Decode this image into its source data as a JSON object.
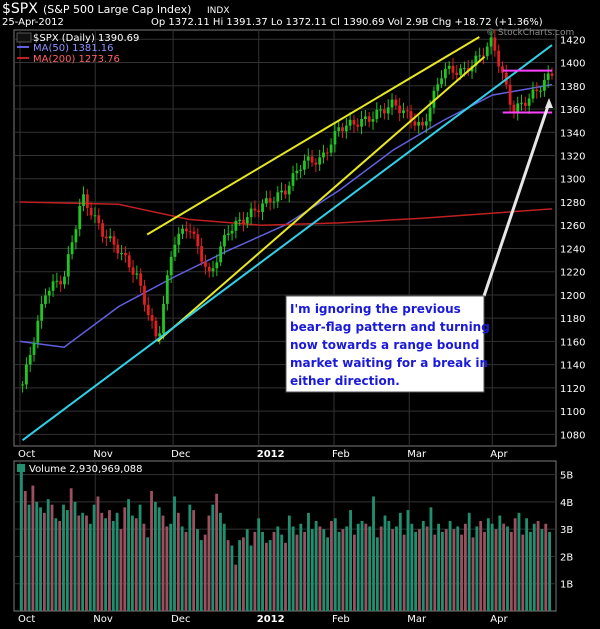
{
  "header": {
    "symbol": "$SPX",
    "name": "(S&P 500 Large Cap Index)",
    "exchange": "INDX",
    "date": "25-Apr-2012",
    "quote": "Op 1372.11  Hi 1391.37  Lo 1372.11  Cl 1390.69  Vol 2.9B  Chg +18.72 (+1.36%)",
    "watermark": "© StockCharts.com"
  },
  "legend": {
    "price": "$SPX (Daily) 1390.69",
    "ma50": "MA(50) 1381.16",
    "ma200": "MA(200) 1273.76"
  },
  "annotation": {
    "lines": [
      "I'm ignoring the previous",
      "bear-flag pattern and turning",
      "now towards a range bound",
      "market waiting for a break in",
      "either direction."
    ]
  },
  "volume_label": "Volume 2,930,969,088",
  "colors": {
    "background": "#000000",
    "up": "#22c422",
    "down": "#e02020",
    "ma50": "#6060e0",
    "ma200": "#c02020",
    "trend_yellow": "#e8e820",
    "trend_cyan": "#30d0e8",
    "range_magenta": "#ff40ff",
    "vol_up": "#1f8f6f",
    "vol_down": "#9b4f5f"
  },
  "chart_data": [
    {
      "type": "candlestick",
      "title": "$SPX (Daily)",
      "x_ticks": [
        "Oct",
        "Nov",
        "Dec",
        "2012",
        "Feb",
        "Mar",
        "Apr"
      ],
      "y_ticks": [
        1080,
        1100,
        1120,
        1140,
        1160,
        1180,
        1200,
        1220,
        1240,
        1260,
        1280,
        1300,
        1320,
        1340,
        1360,
        1380,
        1400,
        1420
      ],
      "ylim": [
        1070,
        1428
      ],
      "x_range": [
        "2011-10-03",
        "2012-04-25"
      ],
      "close_series": [
        {
          "date": "2011-10-04",
          "close": 1123
        },
        {
          "date": "2011-10-13",
          "close": 1204
        },
        {
          "date": "2011-10-20",
          "close": 1215
        },
        {
          "date": "2011-10-27",
          "close": 1285
        },
        {
          "date": "2011-11-04",
          "close": 1253
        },
        {
          "date": "2011-11-10",
          "close": 1239
        },
        {
          "date": "2011-11-17",
          "close": 1216
        },
        {
          "date": "2011-11-25",
          "close": 1159
        },
        {
          "date": "2011-12-01",
          "close": 1245
        },
        {
          "date": "2011-12-07",
          "close": 1260
        },
        {
          "date": "2011-12-15",
          "close": 1216
        },
        {
          "date": "2011-12-22",
          "close": 1255
        },
        {
          "date": "2012-01-04",
          "close": 1277
        },
        {
          "date": "2012-01-13",
          "close": 1289
        },
        {
          "date": "2012-01-20",
          "close": 1315
        },
        {
          "date": "2012-01-27",
          "close": 1316
        },
        {
          "date": "2012-02-03",
          "close": 1344
        },
        {
          "date": "2012-02-14",
          "close": 1351
        },
        {
          "date": "2012-02-24",
          "close": 1365
        },
        {
          "date": "2012-03-06",
          "close": 1343
        },
        {
          "date": "2012-03-14",
          "close": 1394
        },
        {
          "date": "2012-03-22",
          "close": 1392
        },
        {
          "date": "2012-03-28",
          "close": 1405
        },
        {
          "date": "2012-04-02",
          "close": 1419
        },
        {
          "date": "2012-04-10",
          "close": 1358
        },
        {
          "date": "2012-04-16",
          "close": 1369
        },
        {
          "date": "2012-04-20",
          "close": 1378
        },
        {
          "date": "2012-04-25",
          "close": 1391
        }
      ],
      "overlays": [
        {
          "name": "MA(50)",
          "values": [
            [
              "2011-10-03",
              1160
            ],
            [
              "2011-10-20",
              1155
            ],
            [
              "2011-11-10",
              1190
            ],
            [
              "2011-12-01",
              1215
            ],
            [
              "2011-12-22",
              1238
            ],
            [
              "2012-01-13",
              1260
            ],
            [
              "2012-02-03",
              1290
            ],
            [
              "2012-02-24",
              1325
            ],
            [
              "2012-03-14",
              1350
            ],
            [
              "2012-04-02",
              1372
            ],
            [
              "2012-04-25",
              1381
            ]
          ]
        },
        {
          "name": "MA(200)",
          "values": [
            [
              "2011-10-03",
              1280
            ],
            [
              "2011-11-10",
              1278
            ],
            [
              "2011-12-07",
              1265
            ],
            [
              "2012-01-04",
              1260
            ],
            [
              "2012-02-03",
              1262
            ],
            [
              "2012-03-06",
              1266
            ],
            [
              "2012-04-25",
              1274
            ]
          ]
        }
      ],
      "trend_lines": [
        {
          "color": "yellow",
          "from": [
            "2011-11-25",
            1160
          ],
          "to": [
            "2012-03-30",
            1405
          ]
        },
        {
          "color": "yellow",
          "from": [
            "2011-11-21",
            1252
          ],
          "to": [
            "2012-03-28",
            1422
          ]
        },
        {
          "color": "cyan",
          "from": [
            "2011-10-04",
            1075
          ],
          "to": [
            "2012-04-25",
            1415
          ]
        },
        {
          "color": "magenta",
          "from": [
            "2012-04-06",
            1393
          ],
          "to": [
            "2012-04-25",
            1393
          ]
        },
        {
          "color": "magenta",
          "from": [
            "2012-04-06",
            1357
          ],
          "to": [
            "2012-04-25",
            1357
          ]
        }
      ]
    },
    {
      "type": "bar",
      "title": "Volume",
      "y_ticks": [
        "1B",
        "2B",
        "3B",
        "4B",
        "5B"
      ],
      "ylim": [
        0,
        5.5
      ],
      "unit": "B",
      "values": [
        5.1,
        4.4,
        3.9,
        4.6,
        4.0,
        3.8,
        3.6,
        4.1,
        3.9,
        3.4,
        3.3,
        3.9,
        3.7,
        4.5,
        4.0,
        3.5,
        3.6,
        3.5,
        3.2,
        3.9,
        4.2,
        3.6,
        3.4,
        3.7,
        3.3,
        3.6,
        3.0,
        3.8,
        4.1,
        3.5,
        3.4,
        3.9,
        3.2,
        2.7,
        4.4,
        4.0,
        3.8,
        3.5,
        3.1,
        3.2,
        4.2,
        3.6,
        3.1,
        2.9,
        3.9,
        3.7,
        3.0,
        2.6,
        2.8,
        3.5,
        3.9,
        4.3,
        3.6,
        3.2,
        2.6,
        2.4,
        1.7,
        2.6,
        2.7,
        3.0,
        2.4,
        2.9,
        3.4,
        2.9,
        2.5,
        2.6,
        2.9,
        3.1,
        2.8,
        2.5,
        3.5,
        3.1,
        2.8,
        3.2,
        2.9,
        3.6,
        3.0,
        3.3,
        3.1,
        3.0,
        2.7,
        3.3,
        3.4,
        2.9,
        3.0,
        3.1,
        3.7,
        2.8,
        3.2,
        3.3,
        3.2,
        3.1,
        4.2,
        2.7,
        3.1,
        3.5,
        3.3,
        3.0,
        3.1,
        3.6,
        2.8,
        3.7,
        3.2,
        2.9,
        3.0,
        3.3,
        3.1,
        3.8,
        2.8,
        3.2,
        2.9,
        3.0,
        3.3,
        3.0,
        3.1,
        2.8,
        3.2,
        3.6,
        2.7,
        3.1,
        3.3,
        2.9,
        3.4,
        3.2,
        3.0,
        3.5,
        3.2,
        3.1,
        2.9,
        3.4,
        3.6,
        2.8,
        3.4,
        2.9,
        3.2,
        3.3,
        3.0,
        3.2,
        2.9
      ],
      "up_days": [
        1,
        0,
        1,
        0,
        1,
        1,
        0,
        1,
        0,
        1,
        0,
        1,
        1,
        0,
        1,
        0,
        1,
        0,
        1,
        1,
        0,
        0,
        1,
        0,
        1,
        1,
        0,
        0,
        1,
        1,
        0,
        1,
        0,
        1,
        0,
        1,
        1,
        0,
        0,
        1,
        1,
        0,
        1,
        0,
        1,
        0,
        1,
        1,
        0,
        0,
        1,
        0,
        1,
        1,
        0,
        1,
        0,
        1,
        0,
        1,
        1,
        0,
        1,
        1,
        0,
        1,
        0,
        1,
        1,
        0,
        1,
        1,
        0,
        1,
        0,
        1,
        1,
        1,
        0,
        1,
        1,
        0,
        1,
        1,
        0,
        1,
        1,
        0,
        1,
        1,
        0,
        1,
        1,
        1,
        0,
        1,
        1,
        0,
        1,
        1,
        0,
        1,
        1,
        1,
        0,
        1,
        0,
        1,
        0,
        1,
        1,
        0,
        1,
        0,
        1,
        0,
        0,
        1,
        0,
        1,
        0,
        0,
        1,
        1,
        0,
        1,
        0,
        1,
        0,
        0,
        1,
        0,
        1,
        1,
        1,
        0,
        1,
        0,
        1
      ]
    }
  ]
}
